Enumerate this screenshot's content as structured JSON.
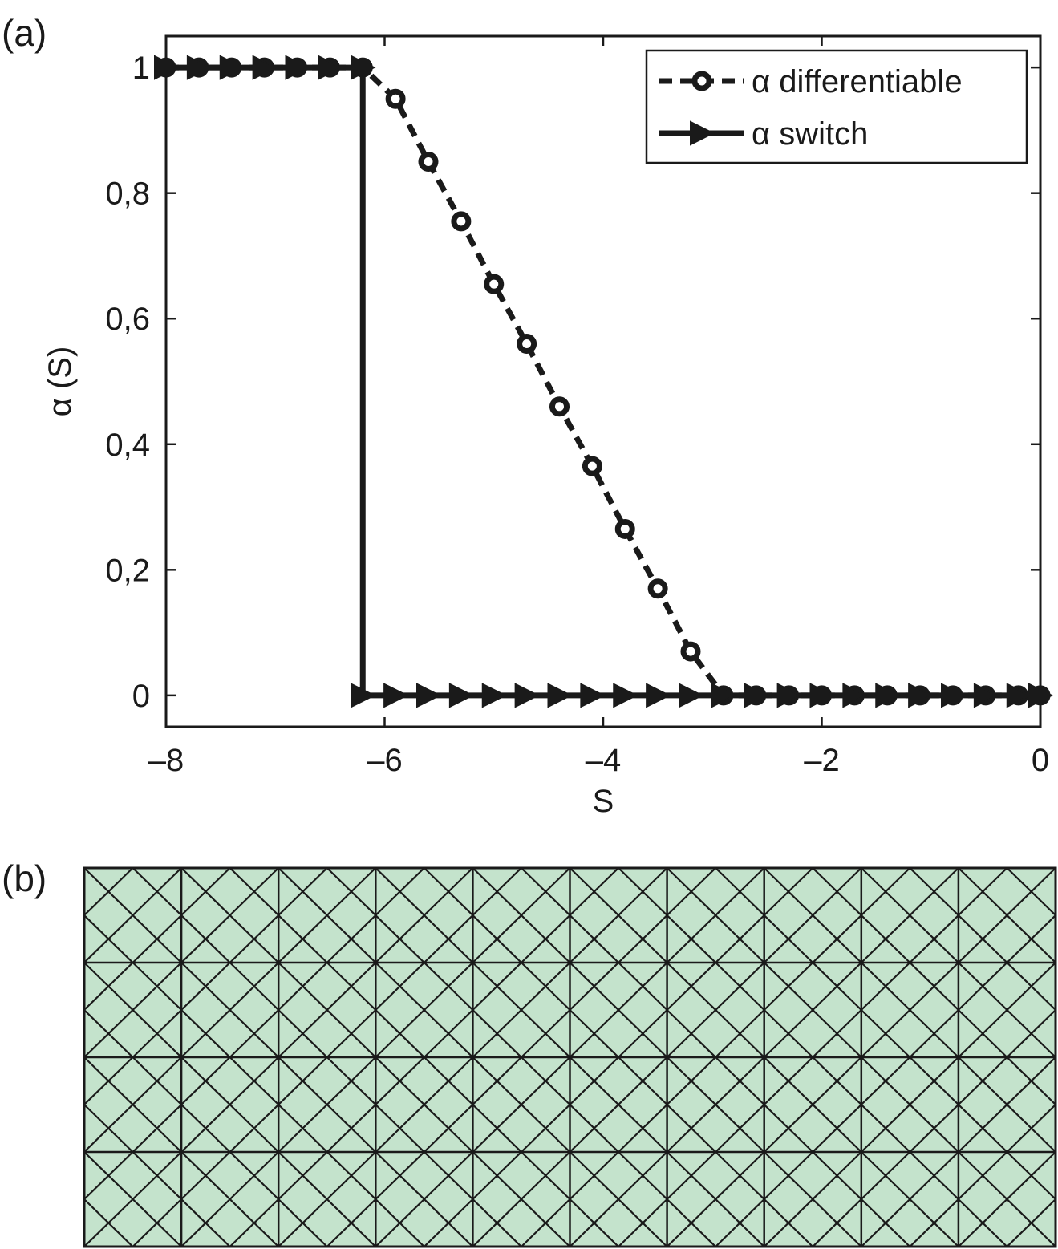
{
  "panels": {
    "a_label": "(a)",
    "b_label": "(b)"
  },
  "chart_data": {
    "type": "line",
    "title": "",
    "xlabel": "S",
    "ylabel": "α (S)",
    "xlim": [
      -8,
      0
    ],
    "ylim": [
      -0.05,
      1.05
    ],
    "xticks": [
      -8,
      -6,
      -4,
      -2,
      0
    ],
    "xtick_labels": [
      "–8",
      "–6",
      "–4",
      "–2",
      "0"
    ],
    "yticks": [
      0,
      0.2,
      0.4,
      0.6,
      0.8,
      1
    ],
    "ytick_labels": [
      "0",
      "0,2",
      "0,4",
      "0,6",
      "0,8",
      "1"
    ],
    "grid": false,
    "legend_position": "top-right",
    "series": [
      {
        "name": "α differentiable",
        "line": "dashed",
        "marker": "open-circle",
        "color": "#1a1a1a",
        "x": [
          -8,
          -7.7,
          -7.4,
          -7.1,
          -6.8,
          -6.5,
          -6.2,
          -5.9,
          -5.6,
          -5.3,
          -5.0,
          -4.7,
          -4.4,
          -4.1,
          -3.8,
          -3.5,
          -3.2,
          -2.9,
          -2.6,
          -2.3,
          -2.0,
          -1.7,
          -1.4,
          -1.1,
          -0.8,
          -0.5,
          -0.2,
          0
        ],
        "y": [
          1,
          1,
          1,
          1,
          1,
          1,
          1,
          0.95,
          0.85,
          0.755,
          0.655,
          0.56,
          0.46,
          0.365,
          0.265,
          0.17,
          0.07,
          0,
          0,
          0,
          0,
          0,
          0,
          0,
          0,
          0,
          0,
          0
        ]
      },
      {
        "name": "α switch",
        "line": "solid",
        "marker": "right-triangle",
        "color": "#1a1a1a",
        "x": [
          -8,
          -7.7,
          -7.4,
          -7.1,
          -6.8,
          -6.5,
          -6.2,
          -6.2,
          -5.9,
          -5.6,
          -5.3,
          -5.0,
          -4.7,
          -4.4,
          -4.1,
          -3.8,
          -3.5,
          -3.2,
          -2.9,
          -2.6,
          -2.3,
          -2.0,
          -1.7,
          -1.4,
          -1.1,
          -0.8,
          -0.5,
          -0.2,
          0
        ],
        "y": [
          1,
          1,
          1,
          1,
          1,
          1,
          1,
          0,
          0,
          0,
          0,
          0,
          0,
          0,
          0,
          0,
          0,
          0,
          0,
          0,
          0,
          0,
          0,
          0,
          0,
          0,
          0,
          0,
          0
        ]
      }
    ]
  },
  "mesh": {
    "fill_color": "#c4e3cc",
    "line_color": "#1a1a1a",
    "columns": 10,
    "rows": 4
  }
}
